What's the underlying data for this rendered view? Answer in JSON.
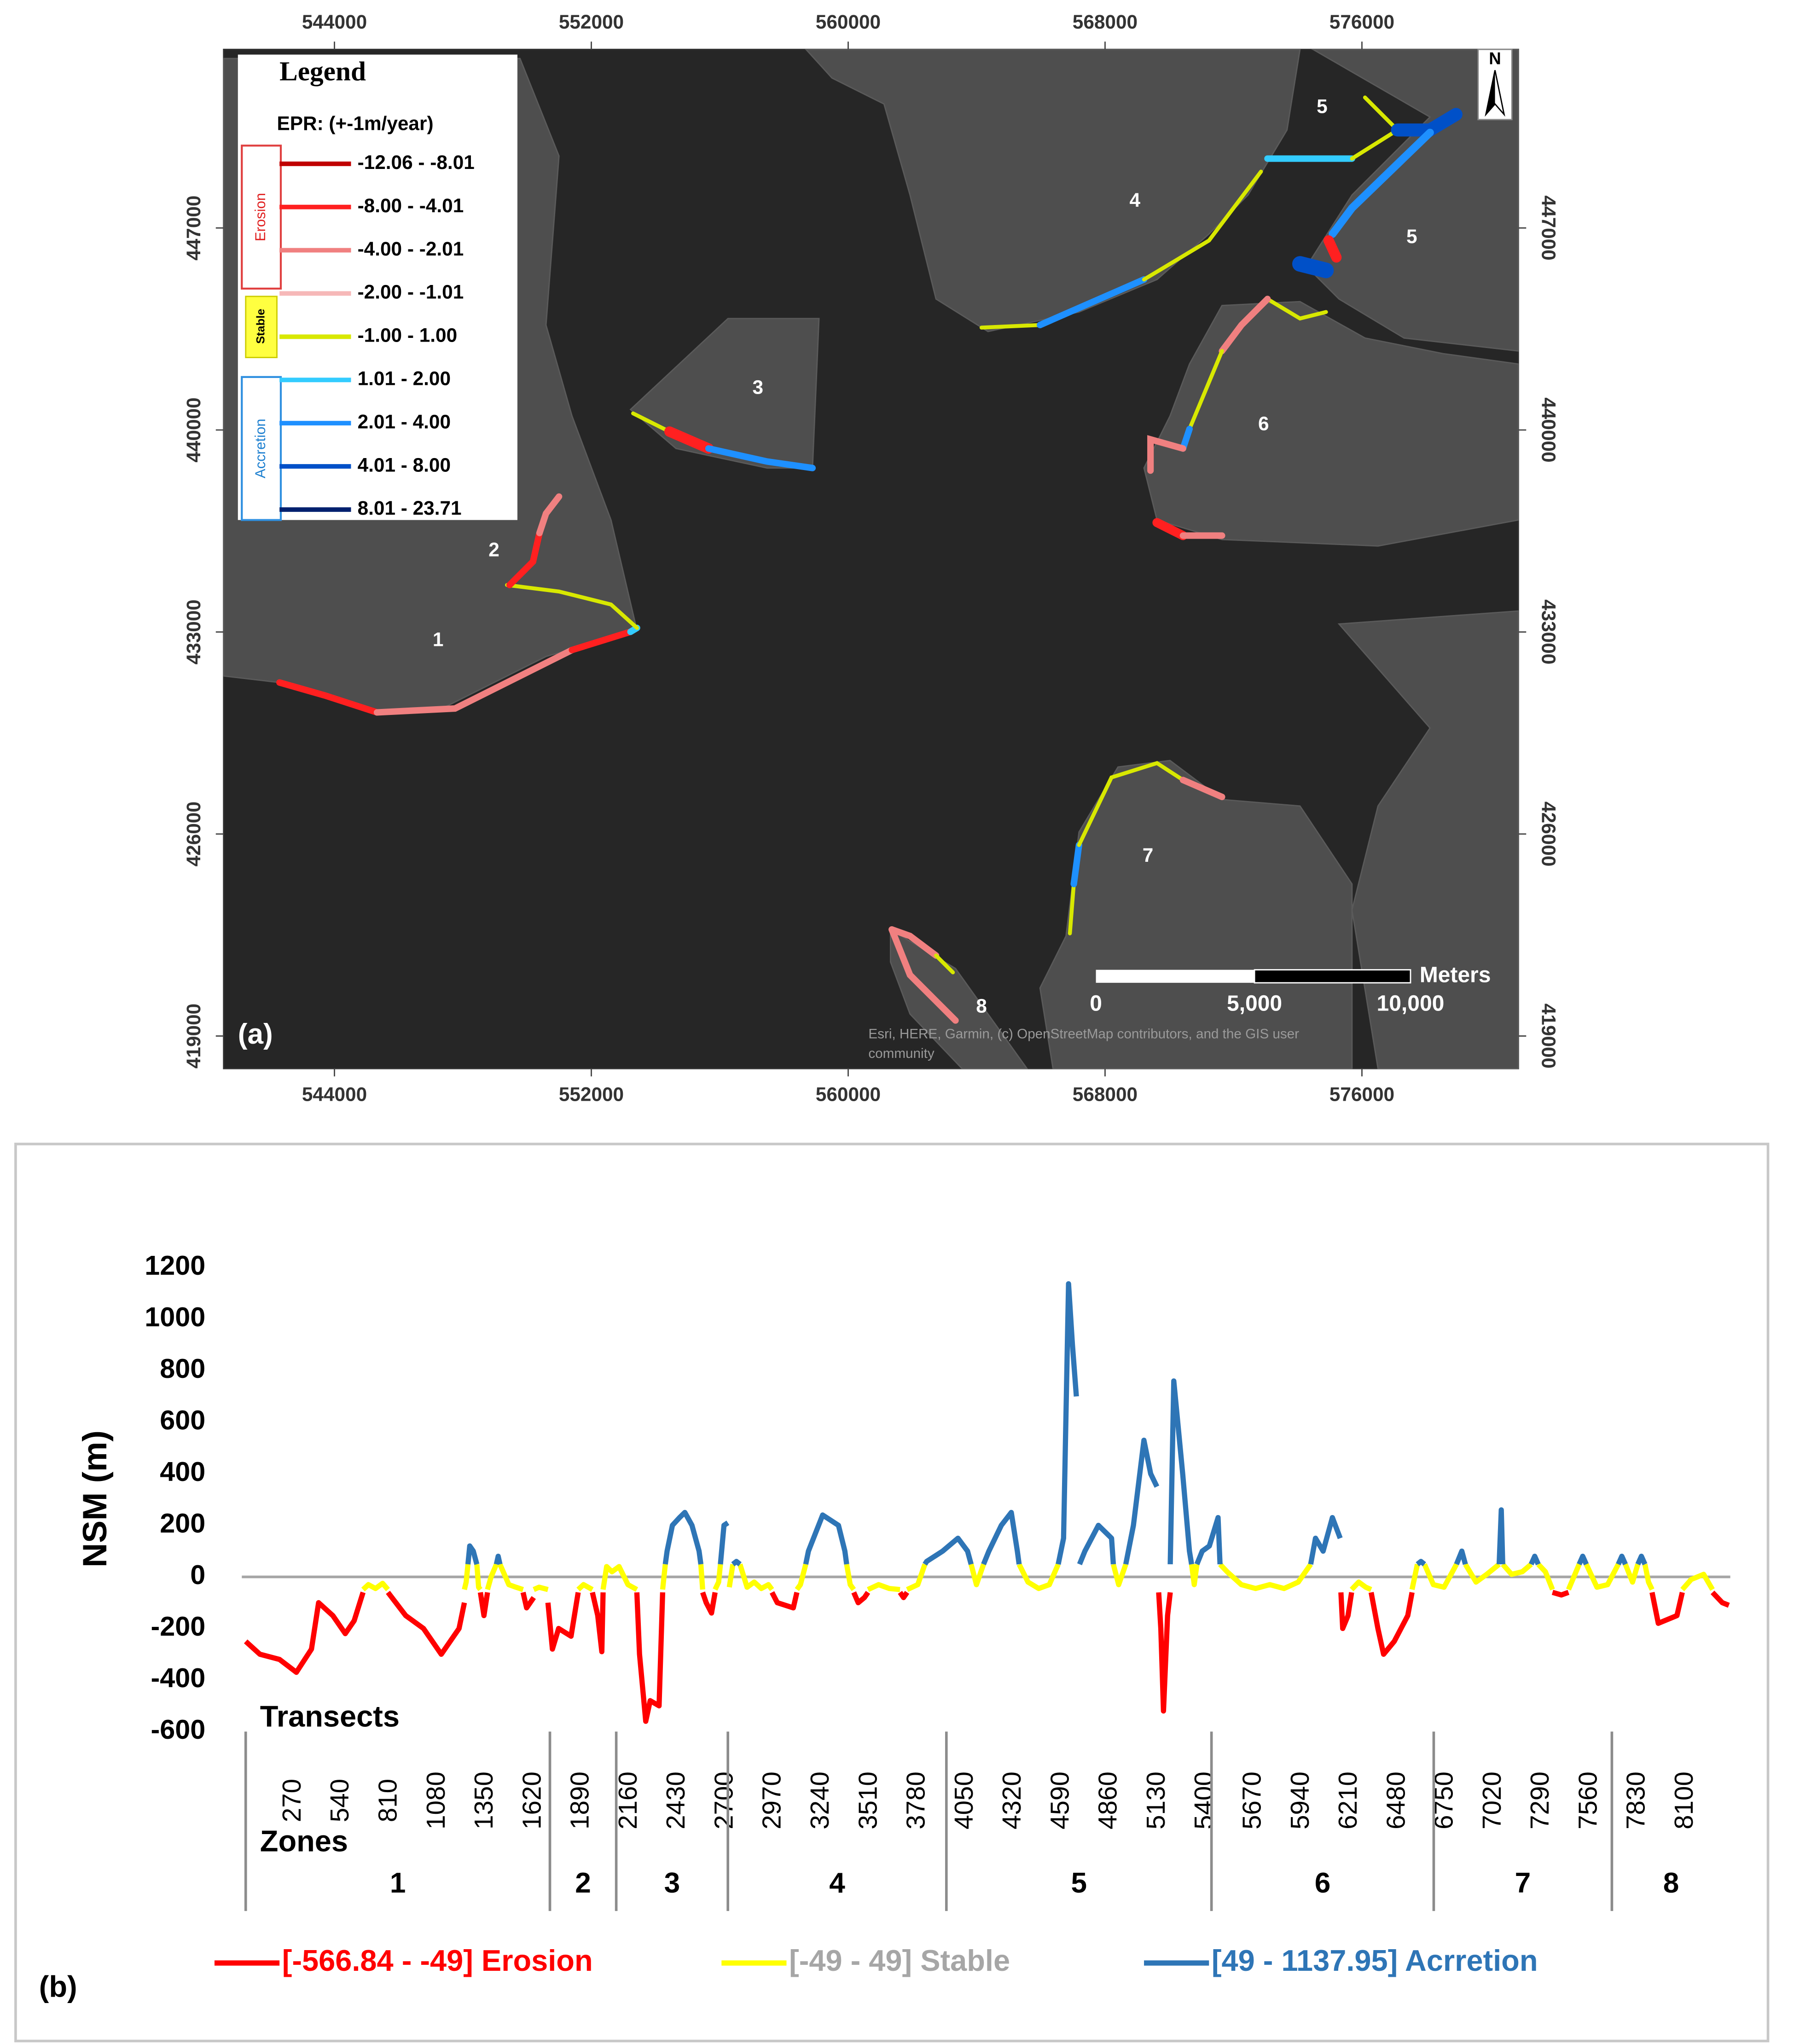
{
  "map": {
    "label": "(a)",
    "xticks": [
      544000,
      552000,
      560000,
      568000,
      576000
    ],
    "xlim": [
      540548,
      580873
    ],
    "yticks": [
      419000,
      426000,
      433000,
      440000,
      447000
    ],
    "ylim": [
      417871,
      453187
    ],
    "zones": [
      "1",
      "2",
      "3",
      "4",
      "5",
      "5",
      "6",
      "7",
      "8"
    ],
    "legend": {
      "title": "Legend",
      "subtitle": "EPR: (+-1m/year)",
      "groups": [
        "Erosion",
        "Stable",
        "Accretion"
      ],
      "classes": [
        {
          "label": "-12.06 - -8.01",
          "color": "#c00000"
        },
        {
          "label": "-8.00 - -4.01",
          "color": "#ff2020"
        },
        {
          "label": "-4.00 - -2.01",
          "color": "#f08080"
        },
        {
          "label": "-2.00 - -1.01",
          "color": "#f6b8b8"
        },
        {
          "label": "-1.00 - 1.00",
          "color": "#d8e800"
        },
        {
          "label": "1.01 - 2.00",
          "color": "#33ccff"
        },
        {
          "label": "2.01 - 4.00",
          "color": "#1e90ff"
        },
        {
          "label": "4.01 - 8.00",
          "color": "#0050c8"
        },
        {
          "label": "8.01 - 23.71",
          "color": "#00206e"
        }
      ]
    },
    "north": "N",
    "scale": {
      "unit": "Meters",
      "labels": [
        "0",
        "5,000",
        "10,000"
      ]
    },
    "attribution": [
      "Esri, HERE, Garmin, (c) OpenStreetMap contributors, and the GIS user",
      "community"
    ]
  },
  "chart_data": {
    "type": "line",
    "label": "(b)",
    "ylabel": "NSM (m)",
    "xlabel": "Transects",
    "zone_title": "Zones",
    "xlim": [
      0,
      8350
    ],
    "ylim": [
      -600,
      1200
    ],
    "yticks": [
      -600,
      -400,
      -200,
      0,
      200,
      400,
      600,
      800,
      1000,
      1200
    ],
    "xticks": [
      270,
      540,
      810,
      1080,
      1350,
      1620,
      1890,
      2160,
      2430,
      2700,
      2970,
      3240,
      3510,
      3780,
      4050,
      4320,
      4590,
      4860,
      5130,
      5400,
      5670,
      5940,
      6210,
      6480,
      6750,
      7020,
      7290,
      7560,
      7830,
      8100
    ],
    "zones": {
      "labels": [
        "1",
        "2",
        "3",
        "4",
        "5",
        "6",
        "7",
        "8"
      ],
      "bounds": [
        0,
        1711,
        2084,
        2712,
        3941,
        5432,
        6682,
        7684
      ]
    },
    "series": [
      {
        "name": "[-566.84 - -49] Erosion",
        "color": "#ff0000",
        "label_color": "#ff0000",
        "x": [
          0,
          80,
          190,
          285,
          370,
          410,
          490,
          560,
          610,
          660,
          700,
          800,
          900,
          1000,
          1100,
          1200,
          1230,
          1280,
          1320,
          1340,
          1360,
          1450,
          1560,
          1580,
          1620,
          1660,
          1700,
          1725,
          1760,
          1830,
          1870,
          1900,
          1950,
          1980,
          2003,
          2010,
          2100,
          2200,
          2215,
          2250,
          2275,
          2325,
          2345,
          2450,
          2570,
          2590,
          2620,
          2640,
          2800,
          2960,
          2990,
          3080,
          3100,
          3300,
          3420,
          3445,
          3480,
          3500,
          3600,
          3680,
          3700,
          3720,
          4500,
          5135,
          5147,
          5162,
          5185,
          5200,
          5700,
          6160,
          6170,
          6200,
          6220,
          6280,
          6330,
          6368,
          6400,
          6460,
          6536,
          6560,
          7000,
          7350,
          7400,
          7440,
          7700,
          7910,
          7945,
          8050,
          8080,
          8150,
          8250,
          8305,
          8342
        ],
        "values": [
          -250,
          -300,
          -320,
          -370,
          -280,
          -100,
          -150,
          -220,
          -170,
          -60,
          null,
          -60,
          -150,
          -200,
          -300,
          -200,
          -100,
          null,
          -60,
          -150,
          -60,
          null,
          -60,
          -120,
          -80,
          null,
          -100,
          -280,
          -200,
          -230,
          -60,
          null,
          -60,
          -150,
          -290,
          -60,
          null,
          -60,
          -300,
          -560,
          -480,
          -500,
          -60,
          null,
          -60,
          -100,
          -140,
          -60,
          null,
          -60,
          -100,
          -120,
          -60,
          null,
          -60,
          -100,
          -80,
          -60,
          null,
          -60,
          -80,
          -60,
          null,
          -60,
          -200,
          -520,
          -150,
          -60,
          null,
          -60,
          -200,
          -150,
          -60,
          null,
          -60,
          -200,
          -300,
          -250,
          -150,
          -60,
          null,
          -60,
          -70,
          -60,
          null,
          -60,
          -180,
          -150,
          -60,
          null,
          -60,
          -100,
          -110
        ]
      },
      {
        "name": "[-49 - 49] Stable",
        "color": "#ffff00",
        "label_color": "#a6a6a6",
        "x": [
          660,
          690,
          730,
          770,
          800,
          1000,
          1230,
          1240,
          1250,
          1270,
          1300,
          1310,
          1320,
          1340,
          1360,
          1380,
          1410,
          1420,
          1430,
          1480,
          1520,
          1560,
          1590,
          1620,
          1650,
          1700,
          1800,
          1870,
          1900,
          1950,
          1980,
          2010,
          2030,
          2060,
          2100,
          2150,
          2200,
          2270,
          2345,
          2360,
          2460,
          2560,
          2570,
          2600,
          2640,
          2660,
          2670,
          2700,
          2720,
          2740,
          2760,
          2780,
          2820,
          2860,
          2900,
          2940,
          2960,
          3000,
          3100,
          3120,
          3150,
          3200,
          3380,
          3400,
          3420,
          3450,
          3500,
          3560,
          3620,
          3680,
          3700,
          3720,
          3780,
          3820,
          3950,
          4080,
          4110,
          4150,
          4250,
          4350,
          4400,
          4460,
          4520,
          4570,
          4700,
          4880,
          4910,
          4950,
          5100,
          5320,
          5335,
          5350,
          5400,
          5480,
          5520,
          5600,
          5680,
          5760,
          5840,
          5920,
          5990,
          6100,
          6220,
          6260,
          6300,
          6330,
          6450,
          6560,
          6590,
          6610,
          6630,
          6680,
          6740,
          6810,
          6830,
          6860,
          6920,
          6980,
          7050,
          7060,
          7070,
          7120,
          7180,
          7230,
          7250,
          7270,
          7310,
          7350,
          7400,
          7440,
          7470,
          7500,
          7520,
          7540,
          7600,
          7660,
          7720,
          7740,
          7760,
          7800,
          7830,
          7850,
          7870,
          7890,
          7910,
          8000,
          8080,
          8130,
          8200,
          8250
        ],
        "values": [
          -49,
          -30,
          -45,
          -25,
          -49,
          null,
          -49,
          -20,
          49,
          null,
          49,
          -40,
          -49,
          null,
          -49,
          0,
          49,
          null,
          49,
          -30,
          -40,
          -49,
          null,
          -49,
          -40,
          -49,
          null,
          -49,
          -30,
          -49,
          null,
          -49,
          40,
          20,
          40,
          -30,
          -49,
          null,
          -49,
          49,
          null,
          49,
          -49,
          null,
          -49,
          -20,
          49,
          null,
          -40,
          49,
          null,
          49,
          -40,
          -20,
          -45,
          -30,
          -49,
          null,
          -49,
          -30,
          49,
          null,
          49,
          -30,
          -49,
          null,
          -49,
          -30,
          -45,
          -49,
          null,
          -49,
          -30,
          49,
          null,
          49,
          -30,
          49,
          null,
          49,
          -20,
          -45,
          -30,
          49,
          null,
          49,
          -30,
          49,
          null,
          49,
          -30,
          49,
          null,
          49,
          20,
          -30,
          -45,
          -30,
          -45,
          -20,
          49,
          null,
          -49,
          -20,
          -40,
          -49,
          null,
          -49,
          49,
          null,
          49,
          -30,
          -40,
          49,
          null,
          49,
          -20,
          10,
          49,
          null,
          49,
          10,
          20,
          49,
          null,
          49,
          20,
          -49,
          null,
          -49,
          0,
          49,
          null,
          49,
          -40,
          -30,
          49,
          null,
          49,
          -20,
          49,
          null,
          49,
          -20,
          -49,
          null,
          -49,
          -10,
          10,
          -49
        ]
      },
      {
        "name": "[49 - 1137.95] Acrretion",
        "color": "#2e75b6",
        "label_color": "#2e75b6",
        "x": [
          1250,
          1260,
          1280,
          1300,
          1350,
          1410,
          1420,
          1430,
          1900,
          2360,
          2370,
          2400,
          2440,
          2470,
          2510,
          2550,
          2560,
          2600,
          2670,
          2690,
          2712,
          2725,
          2740,
          2760,
          2780,
          3000,
          3150,
          3165,
          3245,
          3334,
          3370,
          3380,
          3600,
          3820,
          3830,
          3920,
          4006,
          4060,
          4080,
          4110,
          4150,
          4180,
          4250,
          4306,
          4340,
          4350,
          4450,
          4570,
          4600,
          4628,
          4650,
          4672,
          4680,
          4690,
          4720,
          4796,
          4870,
          4880,
          4900,
          4950,
          4993,
          5052,
          5090,
          5125,
          5160,
          5200,
          5220,
          5270,
          5308,
          5320,
          5335,
          5350,
          5380,
          5420,
          5469,
          5480,
          5700,
          5990,
          6017,
          6060,
          6112,
          6156,
          6400,
          6590,
          6610,
          6630,
          6700,
          6810,
          6840,
          6860,
          6950,
          7050,
          7062,
          7070,
          7150,
          7230,
          7250,
          7270,
          7400,
          7500,
          7520,
          7540,
          7650,
          7720,
          7740,
          7760,
          7800,
          7830,
          7850,
          7870
        ],
        "values": [
          49,
          120,
          100,
          49,
          null,
          49,
          80,
          49,
          null,
          49,
          100,
          200,
          230,
          250,
          200,
          100,
          49,
          null,
          49,
          200,
          210,
          null,
          49,
          60,
          49,
          null,
          49,
          100,
          240,
          200,
          100,
          49,
          null,
          49,
          60,
          100,
          150,
          100,
          49,
          null,
          49,
          100,
          200,
          250,
          100,
          49,
          null,
          49,
          150,
          1137,
          900,
          700,
          null,
          49,
          100,
          200,
          150,
          49,
          null,
          49,
          200,
          530,
          400,
          350,
          null,
          49,
          760,
          400,
          100,
          49,
          null,
          49,
          100,
          120,
          230,
          49,
          null,
          49,
          150,
          100,
          230,
          150,
          null,
          49,
          60,
          49,
          null,
          49,
          100,
          49,
          null,
          49,
          260,
          49,
          null,
          49,
          80,
          49,
          null,
          49,
          80,
          49,
          null,
          49,
          80,
          49,
          null,
          49,
          80,
          49
        ]
      }
    ]
  }
}
